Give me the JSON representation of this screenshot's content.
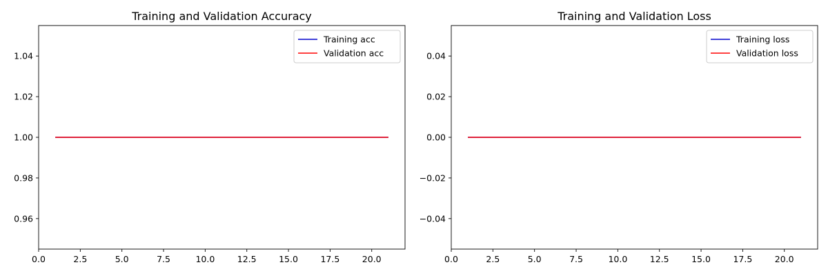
{
  "chart_data": [
    {
      "type": "line",
      "title": "Training and Validation Accuracy",
      "xlabel": "",
      "ylabel": "",
      "xlim": [
        0,
        22
      ],
      "ylim": [
        0.945,
        1.055
      ],
      "xticks": [
        0,
        2.5,
        5,
        7.5,
        10,
        12.5,
        15,
        17.5,
        20
      ],
      "xtick_labels": [
        "0.0",
        "2.5",
        "5.0",
        "7.5",
        "10.0",
        "12.5",
        "15.0",
        "17.5",
        "20.0"
      ],
      "yticks": [
        0.96,
        0.98,
        1.0,
        1.02,
        1.04
      ],
      "ytick_labels": [
        "0.96",
        "0.98",
        "1.00",
        "1.02",
        "1.04"
      ],
      "grid": false,
      "legend_position": "top-right",
      "x": [
        1,
        2,
        3,
        4,
        5,
        6,
        7,
        8,
        9,
        10,
        11,
        12,
        13,
        14,
        15,
        16,
        17,
        18,
        19,
        20,
        21
      ],
      "series": [
        {
          "name": "Training acc",
          "color": "#0000cc",
          "values": [
            1,
            1,
            1,
            1,
            1,
            1,
            1,
            1,
            1,
            1,
            1,
            1,
            1,
            1,
            1,
            1,
            1,
            1,
            1,
            1,
            1
          ]
        },
        {
          "name": "Validation acc",
          "color": "#ff0000",
          "values": [
            1,
            1,
            1,
            1,
            1,
            1,
            1,
            1,
            1,
            1,
            1,
            1,
            1,
            1,
            1,
            1,
            1,
            1,
            1,
            1,
            1
          ]
        }
      ]
    },
    {
      "type": "line",
      "title": "Training and Validation Loss",
      "xlabel": "",
      "ylabel": "",
      "xlim": [
        0,
        22
      ],
      "ylim": [
        -0.055,
        0.055
      ],
      "xticks": [
        0,
        2.5,
        5,
        7.5,
        10,
        12.5,
        15,
        17.5,
        20
      ],
      "xtick_labels": [
        "0.0",
        "2.5",
        "5.0",
        "7.5",
        "10.0",
        "12.5",
        "15.0",
        "17.5",
        "20.0"
      ],
      "yticks": [
        -0.04,
        -0.02,
        0,
        0.02,
        0.04
      ],
      "ytick_labels": [
        "−0.04",
        "−0.02",
        "0.00",
        "0.02",
        "0.04"
      ],
      "grid": false,
      "legend_position": "top-right",
      "x": [
        1,
        2,
        3,
        4,
        5,
        6,
        7,
        8,
        9,
        10,
        11,
        12,
        13,
        14,
        15,
        16,
        17,
        18,
        19,
        20,
        21
      ],
      "series": [
        {
          "name": "Training loss",
          "color": "#0000cc",
          "values": [
            0,
            0,
            0,
            0,
            0,
            0,
            0,
            0,
            0,
            0,
            0,
            0,
            0,
            0,
            0,
            0,
            0,
            0,
            0,
            0,
            0
          ]
        },
        {
          "name": "Validation loss",
          "color": "#ff0000",
          "values": [
            0,
            0,
            0,
            0,
            0,
            0,
            0,
            0,
            0,
            0,
            0,
            0,
            0,
            0,
            0,
            0,
            0,
            0,
            0,
            0,
            0
          ]
        }
      ]
    }
  ]
}
